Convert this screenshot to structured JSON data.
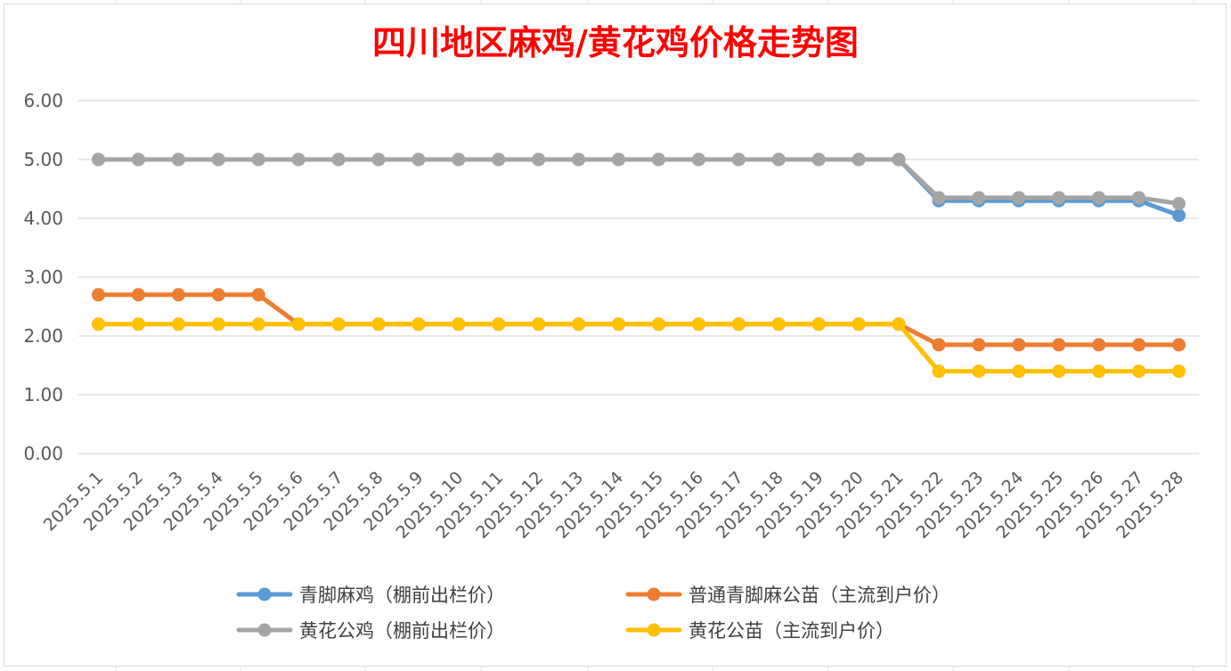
{
  "colors": {
    "title": "#ff0000",
    "series": [
      "#5b9bd5",
      "#ed7d31",
      "#a5a5a5",
      "#ffc000"
    ]
  },
  "chart_data": {
    "type": "line",
    "title": "四川地区麻鸡/黄花鸡价格走势图",
    "xlabel": "",
    "ylabel": "",
    "ylim": [
      0,
      6
    ],
    "yticks": [
      "0.00",
      "1.00",
      "2.00",
      "3.00",
      "4.00",
      "5.00",
      "6.00"
    ],
    "grid": true,
    "legend_position": "bottom",
    "categories": [
      "2025.5.1",
      "2025.5.2",
      "2025.5.3",
      "2025.5.4",
      "2025.5.5",
      "2025.5.6",
      "2025.5.7",
      "2025.5.8",
      "2025.5.9",
      "2025.5.10",
      "2025.5.11",
      "2025.5.12",
      "2025.5.13",
      "2025.5.14",
      "2025.5.15",
      "2025.5.16",
      "2025.5.17",
      "2025.5.18",
      "2025.5.19",
      "2025.5.20",
      "2025.5.21",
      "2025.5.22",
      "2025.5.23",
      "2025.5.24",
      "2025.5.25",
      "2025.5.26",
      "2025.5.27",
      "2025.5.28"
    ],
    "series": [
      {
        "name": "青脚麻鸡（棚前出栏价）",
        "values": [
          5.0,
          5.0,
          5.0,
          5.0,
          5.0,
          5.0,
          5.0,
          5.0,
          5.0,
          5.0,
          5.0,
          5.0,
          5.0,
          5.0,
          5.0,
          5.0,
          5.0,
          5.0,
          5.0,
          5.0,
          5.0,
          4.3,
          4.3,
          4.3,
          4.3,
          4.3,
          4.3,
          4.05
        ]
      },
      {
        "name": "普通青脚麻公苗（主流到户价）",
        "values": [
          2.7,
          2.7,
          2.7,
          2.7,
          2.7,
          2.2,
          2.2,
          2.2,
          2.2,
          2.2,
          2.2,
          2.2,
          2.2,
          2.2,
          2.2,
          2.2,
          2.2,
          2.2,
          2.2,
          2.2,
          2.2,
          1.85,
          1.85,
          1.85,
          1.85,
          1.85,
          1.85,
          1.85
        ]
      },
      {
        "name": "黄花公鸡（棚前出栏价）",
        "values": [
          5.0,
          5.0,
          5.0,
          5.0,
          5.0,
          5.0,
          5.0,
          5.0,
          5.0,
          5.0,
          5.0,
          5.0,
          5.0,
          5.0,
          5.0,
          5.0,
          5.0,
          5.0,
          5.0,
          5.0,
          5.0,
          4.35,
          4.35,
          4.35,
          4.35,
          4.35,
          4.35,
          4.25
        ]
      },
      {
        "name": "黄花公苗（主流到户价）",
        "values": [
          2.2,
          2.2,
          2.2,
          2.2,
          2.2,
          2.2,
          2.2,
          2.2,
          2.2,
          2.2,
          2.2,
          2.2,
          2.2,
          2.2,
          2.2,
          2.2,
          2.2,
          2.2,
          2.2,
          2.2,
          2.2,
          1.4,
          1.4,
          1.4,
          1.4,
          1.4,
          1.4,
          1.4
        ]
      }
    ]
  }
}
